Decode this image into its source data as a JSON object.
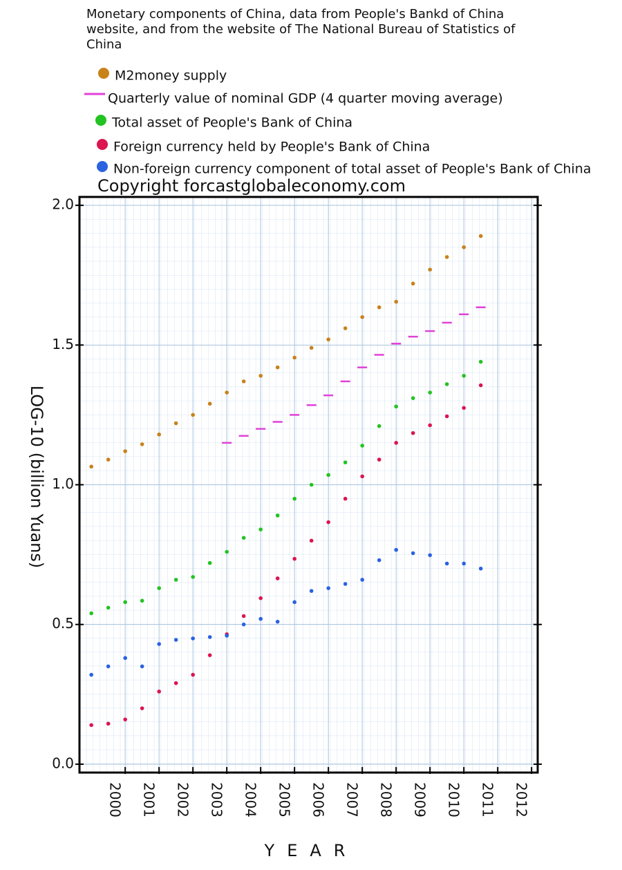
{
  "chart_data": {
    "type": "scatter",
    "title": "Monetary components of China, data from  People's Bankd of China website, and from the website of The National Bureau of Statistics of China",
    "annotation": "Copyright forcastglobaleconomy.com",
    "xlabel": "YEAR",
    "ylabel": "LOG-10 (billion Yuans)",
    "x": [
      1999,
      1999.5,
      2000,
      2000.5,
      2001,
      2001.5,
      2002,
      2002.5,
      2003,
      2003.5,
      2004,
      2004.5,
      2005,
      2005.5,
      2006,
      2006.5,
      2007,
      2007.5,
      2008,
      2008.5,
      2009,
      2009.5,
      2010,
      2010.5
    ],
    "series": [
      {
        "name": "M2money supply",
        "color": "#c8821a",
        "marker": "circle",
        "values": [
          1.065,
          1.09,
          1.12,
          1.145,
          1.18,
          1.22,
          1.25,
          1.29,
          1.33,
          1.37,
          1.39,
          1.42,
          1.455,
          1.49,
          1.52,
          1.56,
          1.6,
          1.635,
          1.655,
          1.72,
          1.77,
          1.815,
          1.85,
          1.89
        ]
      },
      {
        "name": "Quarterly value of nominal GDP  (4 quarter moving average)",
        "color": "#e040d8",
        "marker": "dash",
        "values": [
          null,
          null,
          null,
          null,
          null,
          null,
          null,
          null,
          1.15,
          1.175,
          1.2,
          1.225,
          1.25,
          1.285,
          1.32,
          1.37,
          1.42,
          1.465,
          1.505,
          1.53,
          1.55,
          1.58,
          1.61,
          1.635
        ]
      },
      {
        "name": "Total asset of People's Bank of China",
        "color": "#22c322",
        "marker": "circle",
        "values": [
          0.54,
          0.56,
          0.58,
          0.585,
          0.63,
          0.66,
          0.67,
          0.72,
          0.76,
          0.81,
          0.84,
          0.89,
          0.95,
          1.0,
          1.035,
          1.08,
          1.14,
          1.21,
          1.28,
          1.31,
          1.33,
          1.36,
          1.39,
          1.44
        ]
      },
      {
        "name": "Foreign currency held by People's Bank of China",
        "color": "#dc1450",
        "marker": "circle",
        "values": [
          0.14,
          0.145,
          0.16,
          0.2,
          0.26,
          0.29,
          0.32,
          0.39,
          0.465,
          0.53,
          0.594,
          0.665,
          0.735,
          0.8,
          0.866,
          0.95,
          1.03,
          1.09,
          1.15,
          1.185,
          1.213,
          1.245,
          1.275,
          1.356
        ]
      },
      {
        "name": "Non-foreign currency component of total asset of People's Bank of China",
        "color": "#2a62e0",
        "marker": "circle",
        "values": [
          0.32,
          0.35,
          0.38,
          0.35,
          0.43,
          0.445,
          0.45,
          0.455,
          0.46,
          0.5,
          0.52,
          0.51,
          0.58,
          0.62,
          0.63,
          0.645,
          0.66,
          0.73,
          0.767,
          0.755,
          0.748,
          0.718,
          0.718,
          0.7
        ]
      }
    ],
    "xlim": [
      1998.65,
      2012.18
    ],
    "xticks": [
      2000,
      2001,
      2002,
      2003,
      2004,
      2005,
      2006,
      2007,
      2008,
      2009,
      2010,
      2011,
      2012
    ],
    "ylim": [
      -0.03,
      2.03
    ],
    "yticks": [
      {
        "value": 0,
        "label": "0.0"
      },
      0.5,
      {
        "value": 1,
        "label": "1.0"
      },
      1.5,
      {
        "value": 2,
        "label": "2.0"
      }
    ],
    "grid": true
  }
}
